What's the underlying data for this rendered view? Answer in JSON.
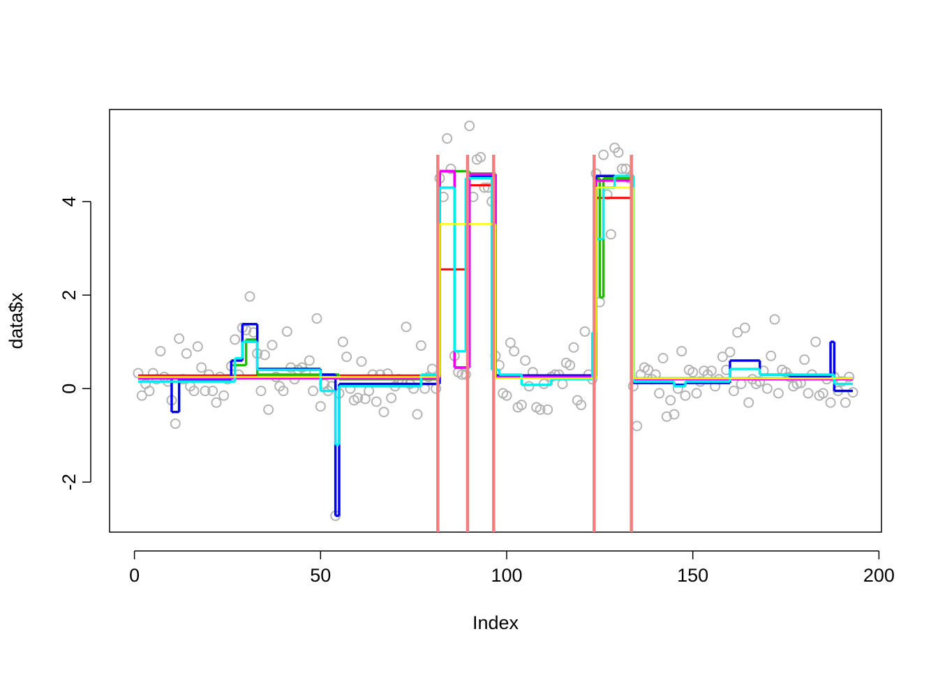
{
  "chart_data": {
    "type": "scatter",
    "xlabel": "Index",
    "ylabel": "data$x",
    "xlim": [
      -6.68,
      200.68
    ],
    "ylim": [
      -3.07,
      5.97
    ],
    "xticks": [
      0,
      50,
      100,
      150,
      200
    ],
    "yticks": [
      -2,
      0,
      2,
      4
    ],
    "point_color": "#b3b3b3",
    "values": [
      0.33,
      -0.15,
      0.1,
      -0.05,
      0.33,
      0.2,
      0.8,
      0.25,
      0.15,
      -0.25,
      -0.75,
      1.07,
      0.2,
      0.75,
      0.05,
      -0.05,
      0.9,
      0.45,
      -0.05,
      0.3,
      -0.05,
      -0.3,
      0.25,
      -0.15,
      0.2,
      0.48,
      1.05,
      0.3,
      1.3,
      1.25,
      1.97,
      1.2,
      0.75,
      -0.05,
      0.72,
      -0.45,
      0.93,
      0.25,
      0.05,
      -0.05,
      1.22,
      0.45,
      0.2,
      0.4,
      0.45,
      0.35,
      0.6,
      -0.05,
      1.5,
      -0.38,
      0.1,
      -0.05,
      0.05,
      -2.72,
      -0.1,
      1.0,
      0.68,
      0.0,
      -0.25,
      -0.2,
      0.58,
      -0.22,
      -0.05,
      0.3,
      -0.28,
      0.3,
      -0.5,
      0.32,
      -0.2,
      0.05,
      0.2,
      0.15,
      1.32,
      0.1,
      0.0,
      -0.55,
      0.92,
      0.0,
      0.25,
      0.42,
      0.0,
      4.5,
      4.1,
      5.35,
      4.7,
      0.7,
      0.35,
      0.3,
      0.3,
      5.62,
      4.1,
      4.9,
      4.95,
      4.3,
      4.3,
      4.0,
      0.7,
      0.5,
      -0.1,
      -0.15,
      0.98,
      0.8,
      -0.4,
      -0.35,
      0.6,
      0.05,
      0.35,
      -0.4,
      -0.45,
      0.1,
      -0.45,
      0.25,
      0.3,
      0.3,
      0.1,
      0.55,
      0.5,
      0.88,
      -0.25,
      -0.35,
      1.22,
      0.3,
      0.2,
      4.6,
      1.85,
      5.0,
      4.15,
      3.3,
      5.15,
      5.05,
      4.7,
      4.7,
      4.5,
      0.05,
      -0.8,
      0.3,
      0.45,
      0.4,
      0.2,
      0.3,
      -0.1,
      0.65,
      -0.6,
      -0.25,
      -0.55,
      0.0,
      0.8,
      -0.15,
      0.4,
      0.35,
      -0.1,
      0.15,
      0.38,
      0.3,
      0.38,
      0.05,
      0.2,
      0.68,
      0.4,
      0.78,
      -0.05,
      1.2,
      0.1,
      1.3,
      -0.3,
      0.2,
      0.1,
      0.15,
      0.38,
      0.0,
      0.7,
      1.48,
      -0.1,
      0.4,
      0.35,
      0.25,
      0.05,
      0.1,
      0.12,
      0.62,
      -0.1,
      0.3,
      1.0,
      -0.15,
      -0.1,
      0.2,
      -0.3,
      0.25,
      -0.05,
      0.15,
      -0.3,
      0.25,
      -0.08
    ],
    "series": [
      {
        "color": "#ff0000",
        "width": 3,
        "x": [
          1,
          82,
          90,
          97,
          124,
          134
        ],
        "values": [
          0.28,
          2.55,
          4.35,
          0.28,
          4.08,
          0.22
        ]
      },
      {
        "color": "#22bb00",
        "width": 3.5,
        "x": [
          1,
          26,
          30,
          33,
          55,
          82,
          90,
          97,
          124,
          125,
          126,
          134
        ],
        "values": [
          0.22,
          0.5,
          1.05,
          0.3,
          0.2,
          4.65,
          4.6,
          0.25,
          4.5,
          1.95,
          4.5,
          0.22
        ]
      },
      {
        "color": "#0000ee",
        "width": 3.5,
        "x": [
          1,
          10,
          12,
          26,
          29,
          33,
          50,
          54,
          55,
          82,
          86,
          90,
          97,
          124,
          134,
          145,
          148,
          160,
          168,
          176,
          187,
          188
        ],
        "values": [
          0.22,
          -0.5,
          0.2,
          0.6,
          1.38,
          0.42,
          0.3,
          -2.72,
          0.1,
          4.65,
          0.45,
          4.55,
          0.28,
          4.55,
          0.12,
          0.08,
          0.12,
          0.6,
          0.3,
          0.25,
          1.0,
          -0.05
        ]
      },
      {
        "color": "#ee00ee",
        "width": 3.5,
        "x": [
          1,
          82,
          86,
          90,
          97,
          124,
          134
        ],
        "values": [
          0.22,
          4.65,
          0.45,
          4.58,
          0.25,
          4.45,
          0.2
        ]
      },
      {
        "color": "#00eeee",
        "width": 3.5,
        "x": [
          1,
          27,
          29,
          33,
          50,
          54,
          55,
          77,
          82,
          86,
          89,
          96,
          98,
          104,
          112,
          123,
          124,
          126,
          129,
          134,
          145,
          148,
          160,
          168,
          188
        ],
        "values": [
          0.15,
          0.65,
          1.0,
          0.4,
          -0.05,
          -1.2,
          0.05,
          0.3,
          4.3,
          0.8,
          4.5,
          0.4,
          0.3,
          0.08,
          0.2,
          1.2,
          3.2,
          4.3,
          4.55,
          0.15,
          0.05,
          0.15,
          0.42,
          0.3,
          0.1
        ]
      },
      {
        "color": "#ffff00",
        "width": 2.5,
        "x": [
          1,
          82,
          97,
          124,
          134
        ],
        "values": [
          0.25,
          3.52,
          0.22,
          4.3,
          0.22
        ]
      }
    ],
    "vline_color": "#f08080",
    "vline_top": 5,
    "vlines": [
      81.5,
      89.5,
      96.5,
      123.5,
      133.5
    ]
  }
}
